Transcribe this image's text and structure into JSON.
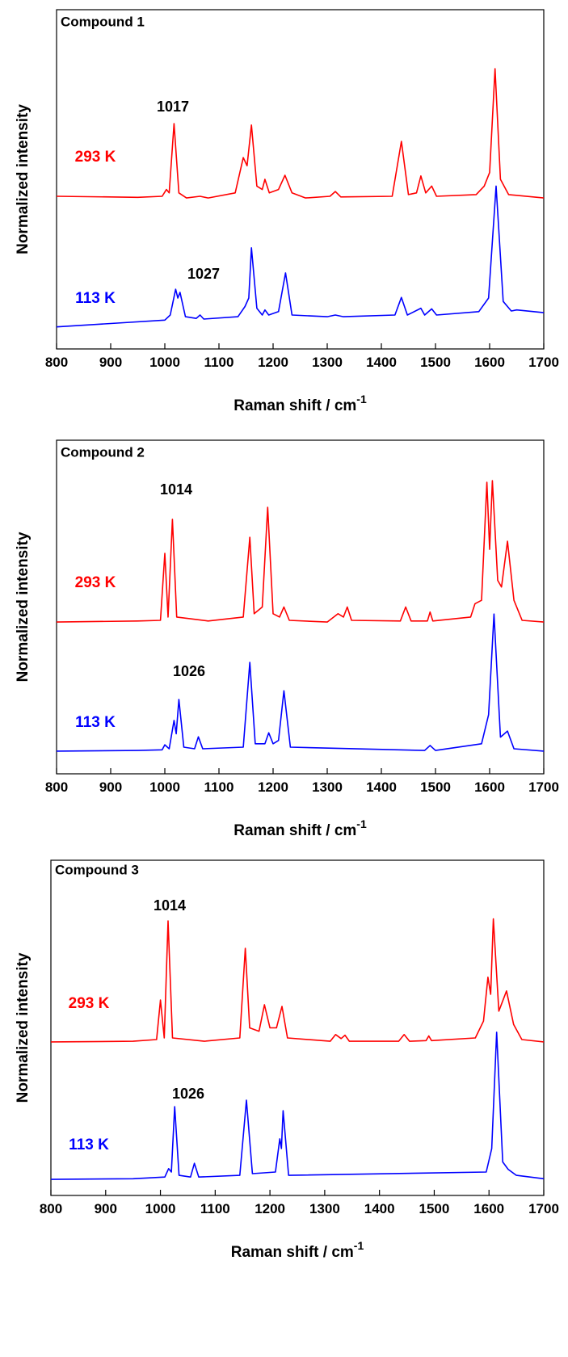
{
  "chart_data": [
    {
      "type": "line",
      "title": "Compound 1",
      "xlabel": "Raman shift / cm",
      "xlabel_sup": "-1",
      "ylabel": "Normalized intensity",
      "xlim": [
        800,
        1700
      ],
      "xticks": [
        800,
        900,
        1000,
        1100,
        1200,
        1300,
        1400,
        1500,
        1600,
        1700
      ],
      "ylim": [
        0,
        1
      ],
      "annotations": [
        "1017",
        "1027"
      ],
      "series": [
        {
          "name": "293 K",
          "color": "#ff0000",
          "x": [
            800,
            950,
            995,
            1003,
            1008,
            1017,
            1026,
            1040,
            1065,
            1080,
            1130,
            1145,
            1152,
            1160,
            1170,
            1180,
            1185,
            1193,
            1210,
            1222,
            1235,
            1260,
            1305,
            1315,
            1325,
            1420,
            1437,
            1450,
            1465,
            1473,
            1482,
            1493,
            1502,
            1575,
            1590,
            1600,
            1610,
            1620,
            1635,
            1700
          ],
          "values": [
            0.45,
            0.447,
            0.45,
            0.47,
            0.46,
            0.664,
            0.46,
            0.445,
            0.45,
            0.445,
            0.46,
            0.564,
            0.54,
            0.66,
            0.48,
            0.47,
            0.5,
            0.46,
            0.47,
            0.512,
            0.46,
            0.445,
            0.45,
            0.464,
            0.448,
            0.45,
            0.612,
            0.455,
            0.46,
            0.51,
            0.46,
            0.48,
            0.45,
            0.455,
            0.48,
            0.52,
            0.826,
            0.5,
            0.455,
            0.445
          ]
        },
        {
          "name": "113 K",
          "color": "#0000ff",
          "x": [
            800,
            900,
            1000,
            1010,
            1020,
            1024,
            1028,
            1038,
            1058,
            1065,
            1072,
            1135,
            1148,
            1155,
            1160,
            1170,
            1180,
            1185,
            1192,
            1210,
            1223,
            1235,
            1300,
            1315,
            1330,
            1425,
            1437,
            1448,
            1473,
            1480,
            1493,
            1502,
            1580,
            1598,
            1612,
            1625,
            1640,
            1650,
            1700
          ],
          "values": [
            0.065,
            0.075,
            0.085,
            0.1,
            0.176,
            0.15,
            0.167,
            0.095,
            0.09,
            0.1,
            0.088,
            0.095,
            0.125,
            0.15,
            0.298,
            0.12,
            0.1,
            0.115,
            0.1,
            0.11,
            0.224,
            0.1,
            0.095,
            0.1,
            0.095,
            0.1,
            0.152,
            0.1,
            0.12,
            0.1,
            0.118,
            0.1,
            0.11,
            0.15,
            0.48,
            0.14,
            0.112,
            0.115,
            0.107
          ]
        }
      ]
    },
    {
      "type": "line",
      "title": "Compound 2",
      "xlabel": "Raman shift / cm",
      "xlabel_sup": "-1",
      "ylabel": "Normalized intensity",
      "xlim": [
        800,
        1700
      ],
      "xticks": [
        800,
        900,
        1000,
        1100,
        1200,
        1300,
        1400,
        1500,
        1600,
        1700
      ],
      "ylim": [
        0,
        1
      ],
      "annotations": [
        "1014",
        "1026"
      ],
      "series": [
        {
          "name": "293 K",
          "color": "#ff0000",
          "x": [
            800,
            950,
            992,
            1000,
            1006,
            1014,
            1022,
            1080,
            1145,
            1157,
            1165,
            1180,
            1190,
            1200,
            1212,
            1220,
            1230,
            1300,
            1320,
            1330,
            1337,
            1345,
            1435,
            1445,
            1455,
            1485,
            1490,
            1495,
            1565,
            1573,
            1585,
            1595,
            1600,
            1605,
            1615,
            1622,
            1633,
            1645,
            1660,
            1700
          ],
          "values": [
            0.455,
            0.458,
            0.46,
            0.661,
            0.47,
            0.763,
            0.47,
            0.458,
            0.47,
            0.709,
            0.48,
            0.5,
            0.799,
            0.48,
            0.47,
            0.5,
            0.46,
            0.455,
            0.48,
            0.47,
            0.5,
            0.46,
            0.458,
            0.5,
            0.458,
            0.458,
            0.485,
            0.458,
            0.47,
            0.51,
            0.52,
            0.874,
            0.673,
            0.879,
            0.58,
            0.56,
            0.697,
            0.52,
            0.46,
            0.455
          ]
        },
        {
          "name": "113 K",
          "color": "#0000ff",
          "x": [
            800,
            950,
            995,
            1000,
            1008,
            1017,
            1021,
            1026,
            1035,
            1055,
            1062,
            1070,
            1145,
            1157,
            1167,
            1185,
            1192,
            1200,
            1210,
            1220,
            1232,
            1480,
            1490,
            1500,
            1585,
            1598,
            1608,
            1620,
            1633,
            1645,
            1700
          ],
          "values": [
            0.068,
            0.07,
            0.072,
            0.087,
            0.075,
            0.16,
            0.12,
            0.223,
            0.08,
            0.075,
            0.111,
            0.075,
            0.08,
            0.334,
            0.09,
            0.09,
            0.123,
            0.09,
            0.1,
            0.249,
            0.08,
            0.07,
            0.085,
            0.07,
            0.09,
            0.177,
            0.479,
            0.11,
            0.128,
            0.075,
            0.068
          ]
        }
      ]
    },
    {
      "type": "line",
      "title": "Compound 3",
      "xlabel": "Raman shift / cm",
      "xlabel_sup": "-1",
      "ylabel": "Normalized intensity",
      "xlim": [
        800,
        1700
      ],
      "xticks": [
        800,
        900,
        1000,
        1100,
        1200,
        1300,
        1400,
        1500,
        1600,
        1700
      ],
      "ylim": [
        0,
        1
      ],
      "annotations": [
        "1014",
        "1026"
      ],
      "series": [
        {
          "name": "293 K",
          "color": "#ff0000",
          "x": [
            800,
            950,
            993,
            1000,
            1007,
            1014,
            1022,
            1080,
            1145,
            1155,
            1163,
            1180,
            1190,
            1200,
            1212,
            1222,
            1232,
            1310,
            1320,
            1330,
            1337,
            1345,
            1435,
            1445,
            1455,
            1485,
            1490,
            1495,
            1575,
            1590,
            1598,
            1603,
            1608,
            1618,
            1632,
            1645,
            1660,
            1700
          ],
          "values": [
            0.458,
            0.46,
            0.465,
            0.583,
            0.47,
            0.819,
            0.47,
            0.46,
            0.47,
            0.737,
            0.5,
            0.49,
            0.569,
            0.5,
            0.5,
            0.564,
            0.47,
            0.46,
            0.48,
            0.468,
            0.478,
            0.46,
            0.46,
            0.48,
            0.46,
            0.462,
            0.476,
            0.462,
            0.47,
            0.52,
            0.651,
            0.6,
            0.825,
            0.55,
            0.61,
            0.51,
            0.465,
            0.458
          ]
        },
        {
          "name": "113 K",
          "color": "#0000ff",
          "x": [
            800,
            950,
            1008,
            1015,
            1020,
            1026,
            1034,
            1055,
            1062,
            1070,
            1145,
            1157,
            1168,
            1210,
            1218,
            1221,
            1224,
            1234,
            1595,
            1605,
            1614,
            1625,
            1635,
            1650,
            1700
          ],
          "values": [
            0.048,
            0.05,
            0.055,
            0.08,
            0.07,
            0.265,
            0.06,
            0.055,
            0.096,
            0.055,
            0.06,
            0.284,
            0.065,
            0.07,
            0.169,
            0.14,
            0.253,
            0.06,
            0.07,
            0.14,
            0.487,
            0.1,
            0.078,
            0.06,
            0.05
          ]
        }
      ]
    }
  ]
}
